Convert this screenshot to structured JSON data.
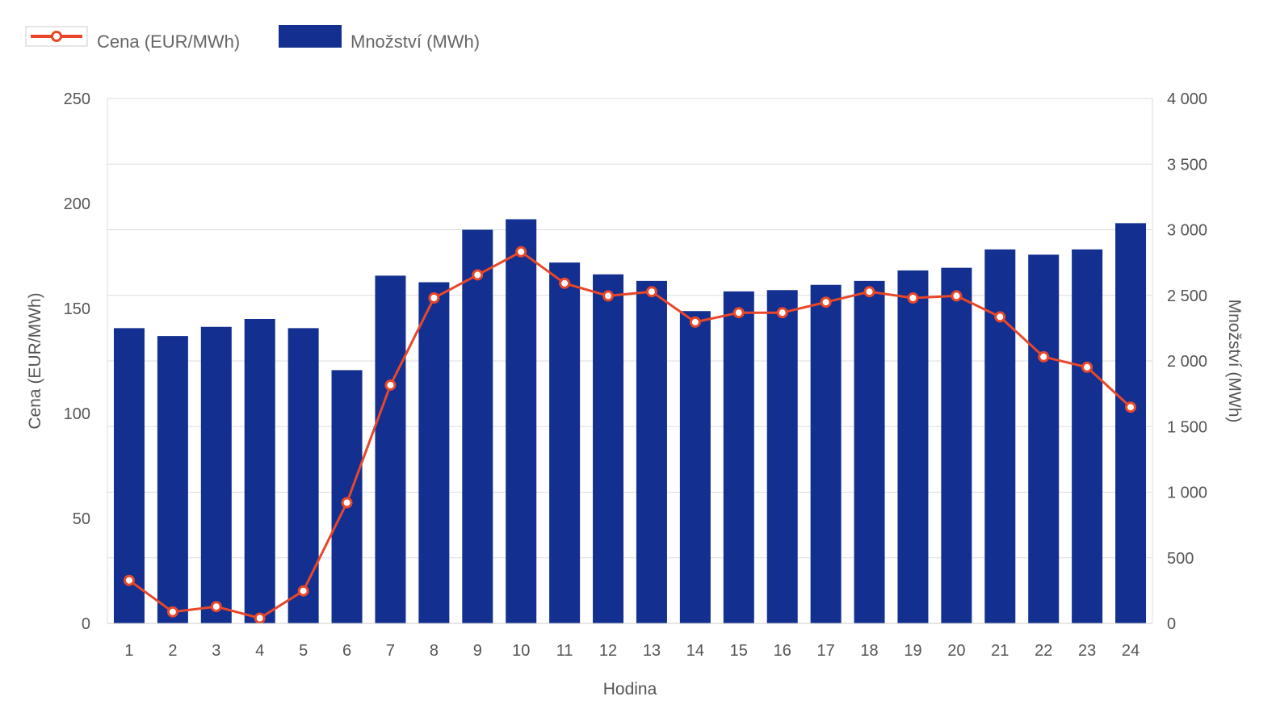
{
  "legend": {
    "price_label": "Cena (EUR/MWh)",
    "quantity_label": "Množství (MWh)"
  },
  "colors": {
    "bar": "#132f8f",
    "line": "#e8472a",
    "grid": "#dddddd",
    "text": "#555555"
  },
  "chart_data": {
    "type": "bar",
    "categories": [
      "1",
      "2",
      "3",
      "4",
      "5",
      "6",
      "7",
      "8",
      "9",
      "10",
      "11",
      "12",
      "13",
      "14",
      "15",
      "16",
      "17",
      "18",
      "19",
      "20",
      "21",
      "22",
      "23",
      "24"
    ],
    "series": [
      {
        "name": "Množství (MWh)",
        "type": "bar",
        "axis": "right",
        "values": [
          2250,
          2190,
          2260,
          2320,
          2250,
          1930,
          2650,
          2600,
          3000,
          3080,
          2750,
          2660,
          2610,
          2380,
          2530,
          2540,
          2580,
          2610,
          2690,
          2710,
          2850,
          2810,
          2850,
          3050
        ]
      },
      {
        "name": "Cena (EUR/MWh)",
        "type": "line",
        "axis": "left",
        "values": [
          20.5,
          5.5,
          8,
          2.5,
          15.5,
          57.5,
          113.5,
          155,
          166,
          177,
          162,
          156,
          158,
          143.5,
          148,
          148,
          153,
          158,
          155,
          156,
          146,
          127,
          122,
          103
        ]
      }
    ],
    "xlabel": "Hodina",
    "ylabel": "Cena (EUR/MWh)",
    "y2label": "Množství (MWh)",
    "ylim": [
      0,
      250
    ],
    "y2lim": [
      0,
      4000
    ],
    "yticks": [
      "0",
      "50",
      "100",
      "150",
      "200",
      "250"
    ],
    "y2ticks": [
      "0",
      "500",
      "1 000",
      "1 500",
      "2 000",
      "2 500",
      "3 000",
      "3 500",
      "4 000"
    ],
    "grid": true,
    "legend_position": "top-left"
  }
}
